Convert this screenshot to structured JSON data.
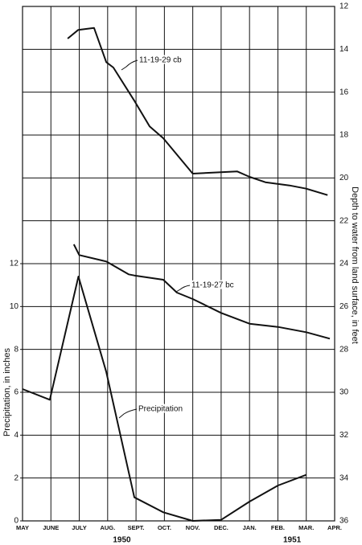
{
  "chart_data": {
    "type": "line",
    "categories": [
      "MAY",
      "JUNE",
      "JULY",
      "AUG.",
      "SEPT.",
      "OCT.",
      "NOV.",
      "DEC.",
      "JAN.",
      "FEB.",
      "MAR.",
      "APR."
    ],
    "years": [
      {
        "label": "1950",
        "at": 3.5
      },
      {
        "label": "1951",
        "at": 9.5
      }
    ],
    "xlim": [
      0,
      11
    ],
    "ylabel": "Precipitation, in inches",
    "ylim": [
      0,
      24
    ],
    "yticks": [
      0,
      2,
      4,
      6,
      8,
      10,
      12
    ],
    "y2label": "Depth to water from land surface, in feet",
    "y2lim": [
      36,
      12
    ],
    "y2ticks": [
      12,
      14,
      16,
      18,
      20,
      22,
      24,
      26,
      28,
      30,
      32,
      34,
      36
    ],
    "grid": true,
    "series": [
      {
        "name": "11-19-29 cb",
        "color": "#111111",
        "axis": "y2",
        "x": [
          1.59,
          1.96,
          2.52,
          2.95,
          3.2,
          3.94,
          4.48,
          4.96,
          6.0,
          7.57,
          8.0,
          8.56,
          9.41,
          10.0,
          10.75
        ],
        "values": [
          13.5,
          13.1,
          13.0,
          14.6,
          14.85,
          16.4,
          17.6,
          18.15,
          19.8,
          19.7,
          19.95,
          20.2,
          20.35,
          20.5,
          20.8
        ]
      },
      {
        "name": "11-19-27 bc",
        "color": "#111111",
        "axis": "y2",
        "x": [
          1.81,
          2.0,
          2.95,
          3.74,
          3.94,
          4.96,
          5.44,
          6.0,
          7.0,
          8.0,
          9.0,
          10.0,
          10.83
        ],
        "values": [
          23.1,
          23.6,
          23.9,
          24.5,
          24.55,
          24.75,
          25.35,
          25.65,
          26.3,
          26.8,
          26.95,
          27.2,
          27.5
        ]
      },
      {
        "name": "Precipitation",
        "color": "#111111",
        "x": [
          0,
          0.96,
          1.97,
          2.95,
          3.94,
          4.96,
          6.0,
          7.0,
          8.0,
          9.0,
          10.0
        ],
        "values": [
          6.15,
          5.65,
          11.4,
          6.95,
          1.1,
          0.4,
          0,
          0.05,
          0.9,
          1.65,
          2.15
        ]
      }
    ]
  }
}
